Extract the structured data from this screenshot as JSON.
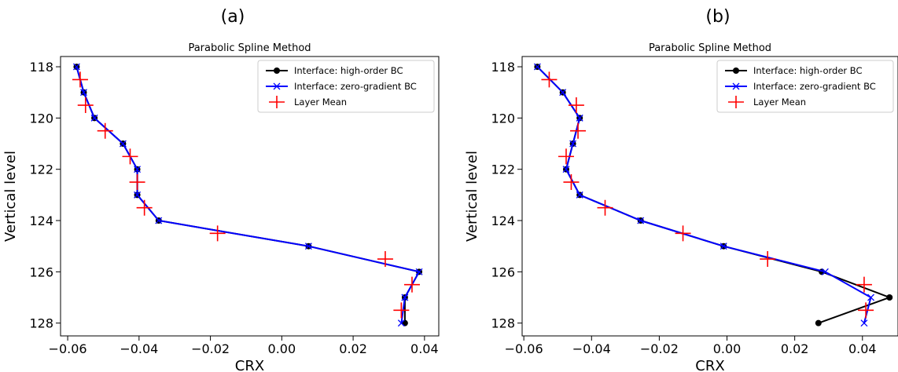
{
  "figure": {
    "panels": [
      "(a)",
      "(b)"
    ]
  },
  "chart_data": [
    {
      "type": "line",
      "panel": "(a)",
      "title": "Parabolic Spline Method",
      "xlabel": "CRX",
      "ylabel": "Vertical level",
      "xlim": [
        -0.062,
        0.044
      ],
      "ylim": [
        128.5,
        117.6
      ],
      "y_inverted": true,
      "xticks": [
        -0.06,
        -0.04,
        -0.02,
        0.0,
        0.02,
        0.04
      ],
      "xtick_labels": [
        "−0.06",
        "−0.04",
        "−0.02",
        "0.00",
        "0.02",
        "0.04"
      ],
      "yticks": [
        118,
        120,
        122,
        124,
        126,
        128
      ],
      "ytick_labels": [
        "118",
        "120",
        "122",
        "124",
        "126",
        "128"
      ],
      "legend_position": "upper right",
      "series": [
        {
          "name": "Interface: high-order BC",
          "color": "#000000",
          "marker": "circle",
          "x": [
            -0.0575,
            -0.0555,
            -0.0525,
            -0.0445,
            -0.0405,
            -0.0405,
            -0.0345,
            0.0075,
            0.0385,
            0.0345,
            0.0345
          ],
          "y": [
            118,
            119,
            120,
            121,
            122,
            123,
            124,
            125,
            126,
            127,
            128
          ]
        },
        {
          "name": "Interface: zero-gradient BC",
          "color": "#0000ff",
          "marker": "x",
          "x": [
            -0.0575,
            -0.0555,
            -0.0525,
            -0.0445,
            -0.0405,
            -0.0405,
            -0.0345,
            0.0075,
            0.0385,
            0.0345,
            0.0335
          ],
          "y": [
            118,
            119,
            120,
            121,
            122,
            123,
            124,
            125,
            126,
            127,
            128
          ]
        },
        {
          "name": "Layer Mean",
          "color": "#ff0000",
          "marker": "plus",
          "x": [
            -0.0565,
            -0.055,
            -0.0495,
            -0.0425,
            -0.0405,
            -0.0385,
            -0.018,
            0.029,
            0.0365,
            0.0335
          ],
          "y": [
            118.5,
            119.5,
            120.5,
            121.5,
            122.5,
            123.5,
            124.5,
            125.5,
            126.5,
            127.5
          ]
        }
      ]
    },
    {
      "type": "line",
      "panel": "(b)",
      "title": "Parabolic Spline Method",
      "xlabel": "CRX",
      "ylabel": "Vertical level",
      "xlim": [
        -0.0605,
        0.0505
      ],
      "ylim": [
        128.5,
        117.6
      ],
      "y_inverted": true,
      "xticks": [
        -0.06,
        -0.04,
        -0.02,
        0.0,
        0.02,
        0.04
      ],
      "xtick_labels": [
        "−0.06",
        "−0.04",
        "−0.02",
        "0.00",
        "0.02",
        "0.04"
      ],
      "yticks": [
        118,
        120,
        122,
        124,
        126,
        128
      ],
      "ytick_labels": [
        "118",
        "120",
        "122",
        "124",
        "126",
        "128"
      ],
      "legend_position": "upper right",
      "series": [
        {
          "name": "Interface: high-order BC",
          "color": "#000000",
          "marker": "circle",
          "x": [
            -0.056,
            -0.0485,
            -0.0435,
            -0.0455,
            -0.0475,
            -0.0435,
            -0.0255,
            -0.001,
            0.028,
            0.048,
            0.027
          ],
          "y": [
            118,
            119,
            120,
            121,
            122,
            123,
            124,
            125,
            126,
            127,
            128
          ]
        },
        {
          "name": "Interface: zero-gradient BC",
          "color": "#0000ff",
          "marker": "x",
          "x": [
            -0.056,
            -0.0485,
            -0.0435,
            -0.0455,
            -0.0475,
            -0.0435,
            -0.0255,
            -0.001,
            0.029,
            0.0425,
            0.0405
          ],
          "y": [
            118,
            119,
            120,
            121,
            122,
            123,
            124,
            125,
            126,
            127,
            128
          ]
        },
        {
          "name": "Layer Mean",
          "color": "#ff0000",
          "marker": "plus",
          "x": [
            -0.0525,
            -0.0445,
            -0.044,
            -0.0475,
            -0.046,
            -0.036,
            -0.013,
            0.012,
            0.0405,
            0.041
          ],
          "y": [
            118.5,
            119.5,
            120.5,
            121.5,
            122.5,
            123.5,
            124.5,
            125.5,
            126.5,
            127.5
          ]
        }
      ]
    }
  ]
}
